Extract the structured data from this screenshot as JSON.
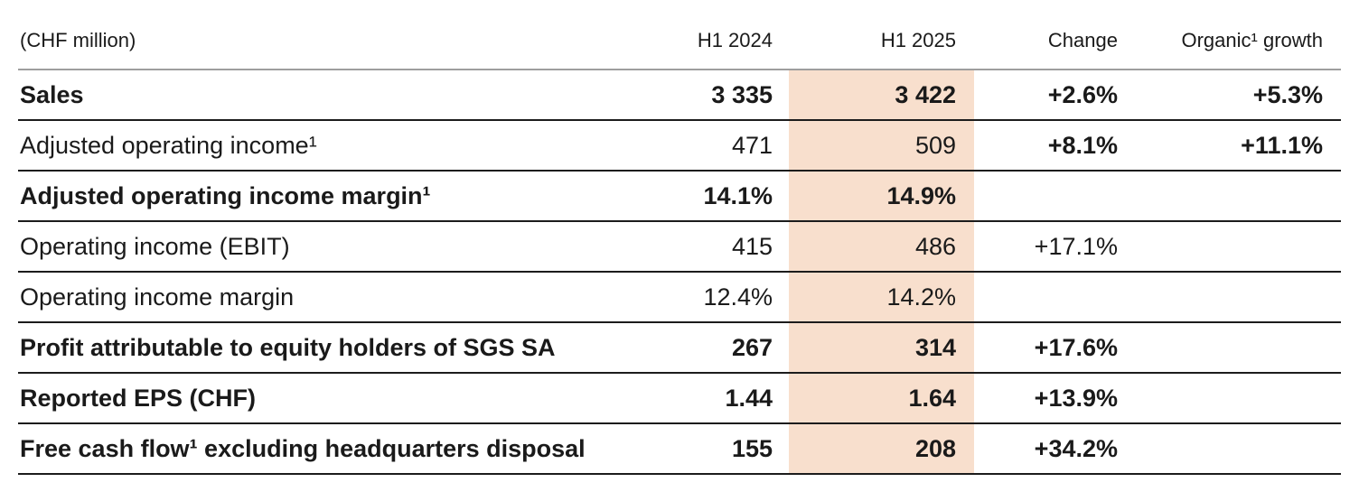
{
  "table": {
    "unit_label": "(CHF million)",
    "columns": {
      "h1_2024": "H1 2024",
      "h1_2025": "H1 2025",
      "change": "Change",
      "organic": "Organic¹ growth"
    },
    "rows": [
      {
        "label": "Sales",
        "h1_2024": "3 335",
        "h1_2025": "3 422",
        "change": "+2.6%",
        "organic": "+5.3%",
        "label_bold": true,
        "values_bold": true,
        "change_bold": true
      },
      {
        "label": "Adjusted operating income¹",
        "h1_2024": "471",
        "h1_2025": "509",
        "change": "+8.1%",
        "organic": "+11.1%",
        "label_bold": false,
        "values_bold": false,
        "change_bold": true
      },
      {
        "label": "Adjusted operating income margin¹",
        "h1_2024": "14.1%",
        "h1_2025": "14.9%",
        "change": "",
        "organic": "",
        "label_bold": true,
        "values_bold": true,
        "change_bold": true
      },
      {
        "label": "Operating income (EBIT)",
        "h1_2024": "415",
        "h1_2025": "486",
        "change": "+17.1%",
        "organic": "",
        "label_bold": false,
        "values_bold": false,
        "change_bold": false
      },
      {
        "label": "Operating income margin",
        "h1_2024": "12.4%",
        "h1_2025": "14.2%",
        "change": "",
        "organic": "",
        "label_bold": false,
        "values_bold": false,
        "change_bold": false
      },
      {
        "label": "Profit attributable to equity holders of SGS SA",
        "h1_2024": "267",
        "h1_2025": "314",
        "change": "+17.6%",
        "organic": "",
        "label_bold": true,
        "values_bold": true,
        "change_bold": true
      },
      {
        "label": "Reported EPS (CHF)",
        "h1_2024": "1.44",
        "h1_2025": "1.64",
        "change": "+13.9%",
        "organic": "",
        "label_bold": true,
        "values_bold": true,
        "change_bold": true
      },
      {
        "label": "Free cash flow¹ excluding headquarters disposal",
        "h1_2024": "155",
        "h1_2025": "208",
        "change": "+34.2%",
        "organic": "",
        "label_bold": true,
        "values_bold": true,
        "change_bold": true
      }
    ],
    "colors": {
      "highlight_column": "#f8dfcd",
      "header_rule": "#9e9e9e",
      "row_rule": "#1c1c1c",
      "text": "#1a1a1a"
    }
  }
}
